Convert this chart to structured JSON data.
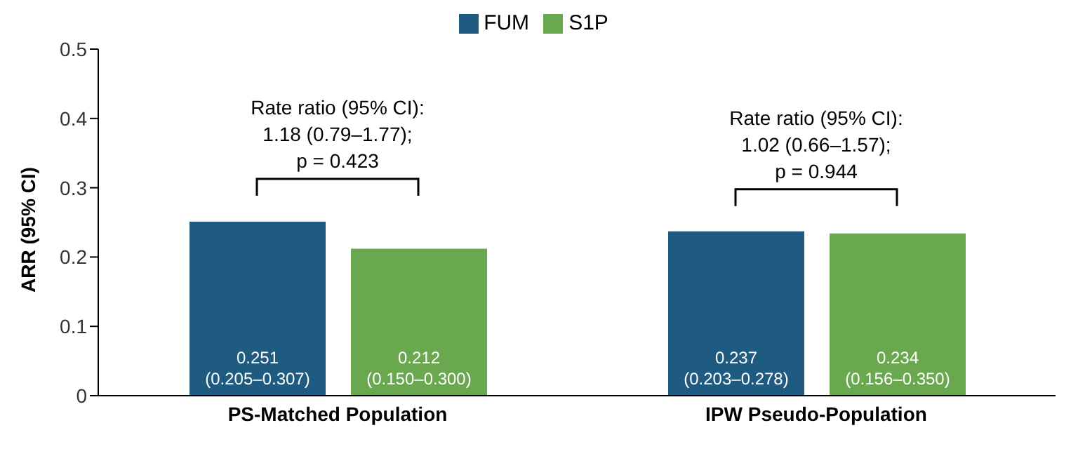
{
  "chart_data": {
    "type": "bar",
    "ylabel": "ARR (95% CI)",
    "categories": [
      "PS-Matched Population",
      "IPW Pseudo-Population"
    ],
    "series": [
      {
        "name": "FUM",
        "color": "#1f5b80",
        "values": [
          0.251,
          0.237
        ],
        "value_labels": [
          "0.251\n(0.205–0.307)",
          "0.237\n(0.203–0.278)"
        ]
      },
      {
        "name": "S1P",
        "color": "#6aa84f",
        "values": [
          0.212,
          0.234
        ],
        "value_labels": [
          "0.212\n(0.150–0.300)",
          "0.234\n(0.156–0.350)"
        ]
      }
    ],
    "ylim": [
      0,
      0.5
    ],
    "yticks": [
      0,
      0.1,
      0.2,
      0.3,
      0.4,
      0.5
    ],
    "grid": false,
    "legend": "top",
    "annotations": [
      "Rate ratio (95% CI):\n1.18 (0.79–1.77);\np = 0.423",
      "Rate ratio (95% CI):\n1.02 (0.66–1.57);\np = 0.944"
    ]
  }
}
